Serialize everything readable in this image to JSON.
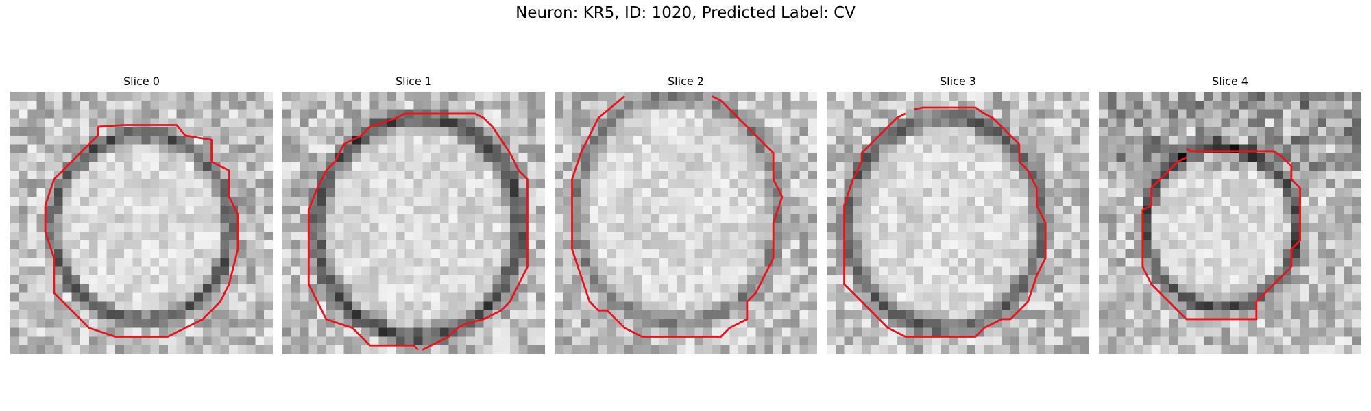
{
  "figure": {
    "title": "Neuron: KR5, ID: 1020, Predicted Label: CV"
  },
  "panels": [
    {
      "title": "Slice 0",
      "contour_color": "#e8141b",
      "seed": 11
    },
    {
      "title": "Slice 1",
      "contour_color": "#e8141b",
      "seed": 23
    },
    {
      "title": "Slice 2",
      "contour_color": "#e8141b",
      "seed": 37
    },
    {
      "title": "Slice 3",
      "contour_color": "#e8141b",
      "seed": 41
    },
    {
      "title": "Slice 4",
      "contour_color": "#e8141b",
      "seed": 53
    }
  ]
}
